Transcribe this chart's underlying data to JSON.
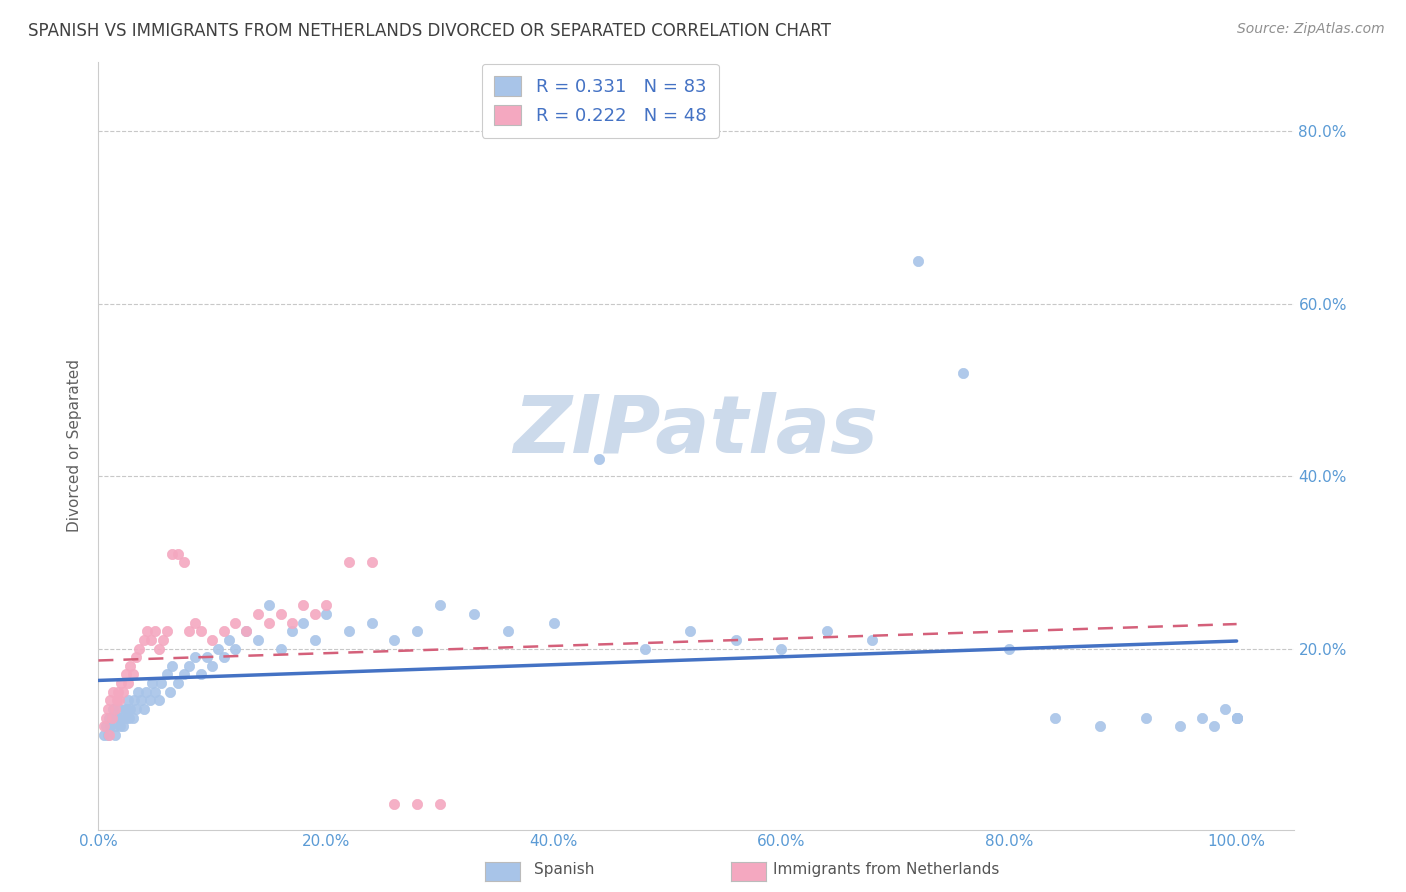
{
  "title": "SPANISH VS IMMIGRANTS FROM NETHERLANDS DIVORCED OR SEPARATED CORRELATION CHART",
  "source": "Source: ZipAtlas.com",
  "ylabel": "Divorced or Separated",
  "legend_label1": "Spanish",
  "legend_label2": "Immigrants from Netherlands",
  "r1": 0.331,
  "n1": 83,
  "r2": 0.222,
  "n2": 48,
  "color1": "#a8c4e8",
  "color2": "#f4a8c0",
  "line_color1": "#4472c4",
  "line_color2": "#d4607a",
  "tick_label_color": "#5b9bd5",
  "watermark_color": "#ccdaeb",
  "background_color": "#ffffff",
  "grid_color": "#c8c8c8",
  "title_color": "#404040",
  "ylabel_color": "#606060",
  "source_color": "#909090",
  "xtick_labels": [
    "0.0%",
    "20.0%",
    "40.0%",
    "60.0%",
    "80.0%",
    "100.0%"
  ],
  "ytick_labels": [
    "20.0%",
    "40.0%",
    "60.0%",
    "80.0%"
  ],
  "xlim": [
    0.0,
    1.05
  ],
  "ylim": [
    -0.01,
    0.88
  ],
  "scatter1_x": [
    0.005,
    0.007,
    0.008,
    0.009,
    0.01,
    0.012,
    0.013,
    0.015,
    0.015,
    0.017,
    0.018,
    0.019,
    0.02,
    0.022,
    0.023,
    0.024,
    0.025,
    0.026,
    0.027,
    0.028,
    0.03,
    0.031,
    0.033,
    0.035,
    0.037,
    0.04,
    0.042,
    0.045,
    0.047,
    0.05,
    0.053,
    0.055,
    0.06,
    0.063,
    0.065,
    0.07,
    0.075,
    0.08,
    0.085,
    0.09,
    0.095,
    0.1,
    0.105,
    0.11,
    0.115,
    0.12,
    0.13,
    0.14,
    0.15,
    0.16,
    0.17,
    0.18,
    0.19,
    0.2,
    0.22,
    0.24,
    0.26,
    0.28,
    0.3,
    0.33,
    0.36,
    0.4,
    0.44,
    0.48,
    0.52,
    0.56,
    0.6,
    0.64,
    0.68,
    0.72,
    0.76,
    0.8,
    0.84,
    0.88,
    0.92,
    0.95,
    0.97,
    0.98,
    0.99,
    1.0,
    1.0,
    1.0,
    1.0
  ],
  "scatter1_y": [
    0.1,
    0.11,
    0.1,
    0.12,
    0.11,
    0.12,
    0.13,
    0.1,
    0.11,
    0.12,
    0.13,
    0.11,
    0.12,
    0.11,
    0.13,
    0.12,
    0.13,
    0.14,
    0.12,
    0.13,
    0.12,
    0.14,
    0.13,
    0.15,
    0.14,
    0.13,
    0.15,
    0.14,
    0.16,
    0.15,
    0.14,
    0.16,
    0.17,
    0.15,
    0.18,
    0.16,
    0.17,
    0.18,
    0.19,
    0.17,
    0.19,
    0.18,
    0.2,
    0.19,
    0.21,
    0.2,
    0.22,
    0.21,
    0.25,
    0.2,
    0.22,
    0.23,
    0.21,
    0.24,
    0.22,
    0.23,
    0.21,
    0.22,
    0.25,
    0.24,
    0.22,
    0.23,
    0.42,
    0.2,
    0.22,
    0.21,
    0.2,
    0.22,
    0.21,
    0.65,
    0.52,
    0.2,
    0.12,
    0.11,
    0.12,
    0.11,
    0.12,
    0.11,
    0.13,
    0.12,
    0.12,
    0.12,
    0.12
  ],
  "scatter2_x": [
    0.005,
    0.007,
    0.008,
    0.009,
    0.01,
    0.012,
    0.013,
    0.015,
    0.016,
    0.017,
    0.018,
    0.02,
    0.022,
    0.024,
    0.026,
    0.028,
    0.03,
    0.033,
    0.036,
    0.04,
    0.043,
    0.046,
    0.05,
    0.053,
    0.057,
    0.06,
    0.065,
    0.07,
    0.075,
    0.08,
    0.085,
    0.09,
    0.1,
    0.11,
    0.12,
    0.13,
    0.14,
    0.15,
    0.16,
    0.17,
    0.18,
    0.19,
    0.2,
    0.22,
    0.24,
    0.26,
    0.28,
    0.3
  ],
  "scatter2_y": [
    0.11,
    0.12,
    0.13,
    0.1,
    0.14,
    0.12,
    0.15,
    0.13,
    0.14,
    0.15,
    0.14,
    0.16,
    0.15,
    0.17,
    0.16,
    0.18,
    0.17,
    0.19,
    0.2,
    0.21,
    0.22,
    0.21,
    0.22,
    0.2,
    0.21,
    0.22,
    0.31,
    0.31,
    0.3,
    0.22,
    0.23,
    0.22,
    0.21,
    0.22,
    0.23,
    0.22,
    0.24,
    0.23,
    0.24,
    0.23,
    0.25,
    0.24,
    0.25,
    0.3,
    0.3,
    0.02,
    0.02,
    0.02
  ]
}
